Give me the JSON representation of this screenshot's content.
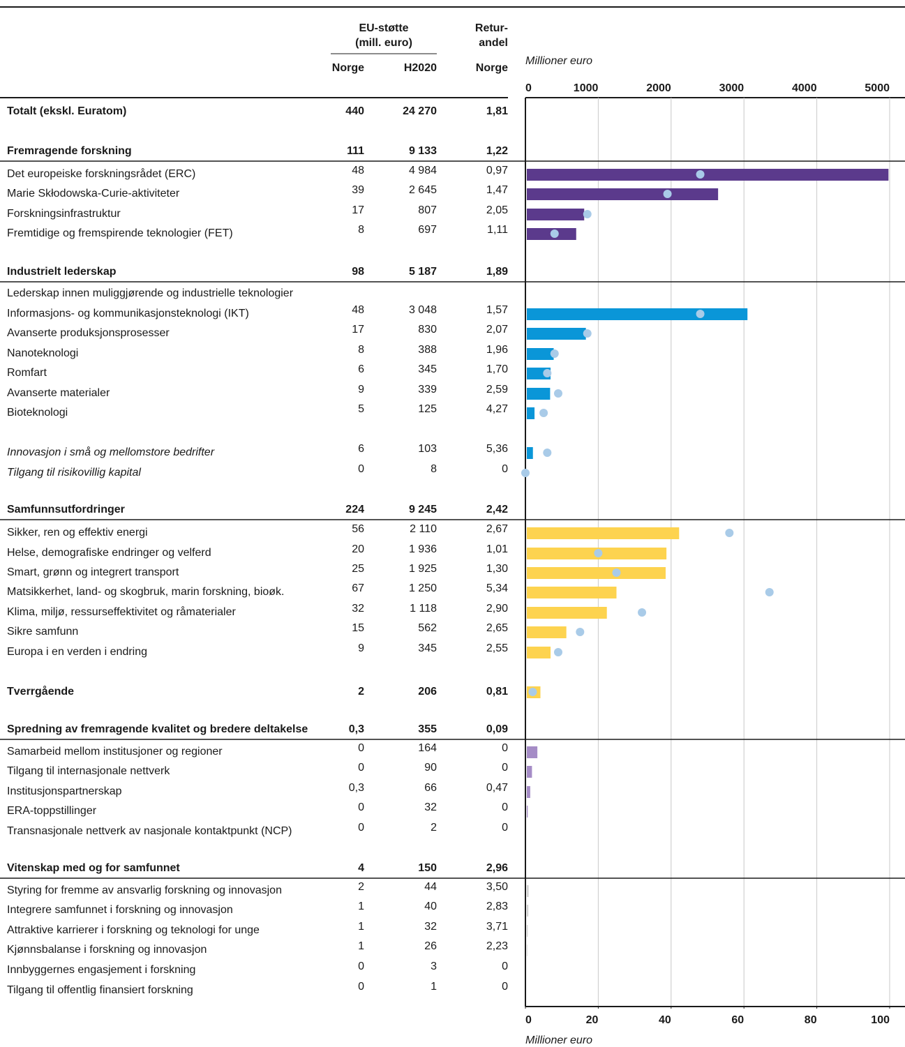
{
  "chart_data": {
    "type": "bar",
    "header": {
      "eu_support": "EU-støtte",
      "eu_unit": "(mill. euro)",
      "return_1": "Retur-",
      "return_2": "andel",
      "col_norge": "Norge",
      "col_h2020": "H2020",
      "col_return_norge": "Norge"
    },
    "xlabel": "Millioner euro",
    "x2label": "Millioner euro",
    "xlim": [
      0,
      5000
    ],
    "xticks": [
      0,
      1000,
      2000,
      3000,
      4000,
      5000
    ],
    "x2lim": [
      0,
      100
    ],
    "x2ticks": [
      0,
      20,
      40,
      60,
      80,
      100
    ],
    "grid": true,
    "dot_color": "#a9cbe8",
    "rows": [
      {
        "label": "Totalt (ekskl. Euratom)",
        "style": "bold",
        "norge": 440,
        "h2020": 24270,
        "h2020_label": "24 270",
        "retur": 1.81,
        "retur_label": "1,81"
      },
      {
        "label": "Fremragende forskning",
        "style": "bold",
        "rule": true,
        "norge": 111,
        "h2020": 9133,
        "h2020_label": "9 133",
        "retur": 1.22,
        "retur_label": "1,22"
      },
      {
        "label": "Det europeiske forskningsrådet (ERC)",
        "color": "#5b3a8c",
        "dot": true,
        "norge": 48,
        "h2020": 4984,
        "h2020_label": "4 984",
        "retur": 0.97,
        "retur_label": "0,97"
      },
      {
        "label": "Marie Skłodowska-Curie-aktiviteter",
        "color": "#5b3a8c",
        "dot": true,
        "norge": 39,
        "h2020": 2645,
        "h2020_label": "2 645",
        "retur": 1.47,
        "retur_label": "1,47"
      },
      {
        "label": "Forskningsinfrastruktur",
        "color": "#5b3a8c",
        "dot": true,
        "norge": 17,
        "h2020": 807,
        "retur": 2.05,
        "retur_label": "2,05"
      },
      {
        "label": "Fremtidige og fremspirende teknologier (FET)",
        "color": "#5b3a8c",
        "dot": true,
        "norge": 8,
        "h2020": 697,
        "retur": 1.11,
        "retur_label": "1,11"
      },
      {
        "label": "Industrielt lederskap",
        "style": "bold",
        "rule": true,
        "norge": 98,
        "h2020": 5187,
        "h2020_label": "5 187",
        "retur": 1.89,
        "retur_label": "1,89"
      },
      {
        "label": "Lederskap innen muliggjørende og industrielle teknologier"
      },
      {
        "label": "Informasjons- og kommunikasjonsteknologi (IKT)",
        "color": "#0a96d8",
        "dot": true,
        "norge": 48,
        "h2020": 3048,
        "h2020_label": "3 048",
        "retur": 1.57,
        "retur_label": "1,57"
      },
      {
        "label": "Avanserte produksjonsprosesser",
        "color": "#0a96d8",
        "dot": true,
        "norge": 17,
        "h2020": 830,
        "retur": 2.07,
        "retur_label": "2,07"
      },
      {
        "label": "Nanoteknologi",
        "color": "#0a96d8",
        "dot": true,
        "norge": 8,
        "h2020": 388,
        "retur": 1.96,
        "retur_label": "1,96"
      },
      {
        "label": "Romfart",
        "color": "#0a96d8",
        "dot": true,
        "norge": 6,
        "h2020": 345,
        "retur": 1.7,
        "retur_label": "1,70"
      },
      {
        "label": "Avanserte materialer",
        "color": "#0a96d8",
        "dot": true,
        "norge": 9,
        "h2020": 339,
        "retur": 2.59,
        "retur_label": "2,59"
      },
      {
        "label": "Bioteknologi",
        "color": "#0a96d8",
        "dot": true,
        "norge": 5,
        "h2020": 125,
        "retur": 4.27,
        "retur_label": "4,27"
      },
      {
        "label": "Innovasjon i små og mellomstore bedrifter",
        "style": "italic",
        "color": "#0a96d8",
        "dot": true,
        "norge": 6,
        "h2020": 103,
        "retur": 5.36,
        "retur_label": "5,36"
      },
      {
        "label": "Tilgang til risikovillig kapital",
        "style": "italic",
        "color": "#0a96d8",
        "dot": true,
        "norge": 0,
        "h2020": 8,
        "retur": 0
      },
      {
        "label": "Samfunnsutfordringer",
        "style": "bold",
        "rule": true,
        "norge": 224,
        "h2020": 9245,
        "h2020_label": "9 245",
        "retur": 2.42,
        "retur_label": "2,42"
      },
      {
        "label": "Sikker, ren og effektiv energi",
        "color": "#fdd34f",
        "dot": true,
        "norge": 56,
        "h2020": 2110,
        "h2020_label": "2 110",
        "retur": 2.67,
        "retur_label": "2,67"
      },
      {
        "label": "Helse, demografiske endringer og velferd",
        "color": "#fdd34f",
        "dot": true,
        "norge": 20,
        "h2020": 1936,
        "h2020_label": "1 936",
        "retur": 1.01,
        "retur_label": "1,01"
      },
      {
        "label": "Smart, grønn og integrert transport",
        "color": "#fdd34f",
        "dot": true,
        "norge": 25,
        "h2020": 1925,
        "h2020_label": "1 925",
        "retur": 1.3,
        "retur_label": "1,30"
      },
      {
        "label": "Matsikkerhet, land- og skogbruk, marin forskning, bioøk.",
        "color": "#fdd34f",
        "dot": true,
        "norge": 67,
        "h2020": 1250,
        "h2020_label": "1 250",
        "retur": 5.34,
        "retur_label": "5,34"
      },
      {
        "label": "Klima, miljø, ressurseffektivitet og råmaterialer",
        "color": "#fdd34f",
        "dot": true,
        "norge": 32,
        "h2020": 1118,
        "h2020_label": "1 118",
        "retur": 2.9,
        "retur_label": "2,90"
      },
      {
        "label": "Sikre samfunn",
        "color": "#fdd34f",
        "dot": true,
        "norge": 15,
        "h2020": 562,
        "retur": 2.65,
        "retur_label": "2,65"
      },
      {
        "label": "Europa i en verden i endring",
        "color": "#fdd34f",
        "dot": true,
        "norge": 9,
        "h2020": 345,
        "retur": 2.55,
        "retur_label": "2,55"
      },
      {
        "label": "Tverrgående",
        "style": "bold",
        "color": "#fdd34f",
        "dot": true,
        "norge": 2,
        "h2020": 206,
        "retur": 0.81,
        "retur_label": "0,81"
      },
      {
        "label": "Spredning av fremragende kvalitet og bredere deltakelse",
        "style": "bold",
        "rule": true,
        "norge": 0.3,
        "norge_label": "0,3",
        "h2020": 355,
        "retur": 0.09,
        "retur_label": "0,09"
      },
      {
        "label": "Samarbeid mellom institusjoner og regioner",
        "color": "#a58cc6",
        "norge": 0,
        "h2020": 164,
        "retur": 0
      },
      {
        "label": "Tilgang til internasjonale nettverk",
        "color": "#a58cc6",
        "norge": 0,
        "h2020": 90,
        "retur": 0
      },
      {
        "label": "Institusjonspartnerskap",
        "color": "#a58cc6",
        "norge": 0.3,
        "norge_label": "0,3",
        "h2020": 66,
        "retur": 0.47,
        "retur_label": "0,47"
      },
      {
        "label": "ERA-toppstillinger",
        "color": "#a58cc6",
        "norge": 0,
        "h2020": 32,
        "retur": 0
      },
      {
        "label": "Transnasjonale nettverk av nasjonale kontaktpunkt (NCP)",
        "color": "#a58cc6",
        "norge": 0,
        "h2020": 2,
        "retur": 0
      },
      {
        "label": "Vitenskap med og for samfunnet",
        "style": "bold",
        "rule": true,
        "norge": 4,
        "h2020": 150,
        "retur": 2.96,
        "retur_label": "2,96"
      },
      {
        "label": "Styring for fremme av ansvarlig forskning og innovasjon",
        "color": "#d2d2d2",
        "norge": 2,
        "h2020": 44,
        "retur": 3.5,
        "retur_label": "3,50"
      },
      {
        "label": "Integrere samfunnet i forskning og innovasjon",
        "color": "#d2d2d2",
        "norge": 1,
        "h2020": 40,
        "retur": 2.83,
        "retur_label": "2,83"
      },
      {
        "label": "Attraktive karrierer i forskning og teknologi for unge",
        "color": "#d2d2d2",
        "norge": 1,
        "h2020": 32,
        "retur": 3.71,
        "retur_label": "3,71"
      },
      {
        "label": "Kjønnsbalanse i forskning og innovasjon",
        "color": "#d2d2d2",
        "norge": 1,
        "h2020": 26,
        "retur": 2.23,
        "retur_label": "2,23"
      },
      {
        "label": "Innbyggernes engasjement i forskning",
        "color": "#d2d2d2",
        "norge": 0,
        "h2020": 3,
        "retur": 0
      },
      {
        "label": "Tilgang til offentlig finansiert forskning",
        "color": "#d2d2d2",
        "norge": 0,
        "h2020": 1,
        "retur": 0
      }
    ]
  }
}
